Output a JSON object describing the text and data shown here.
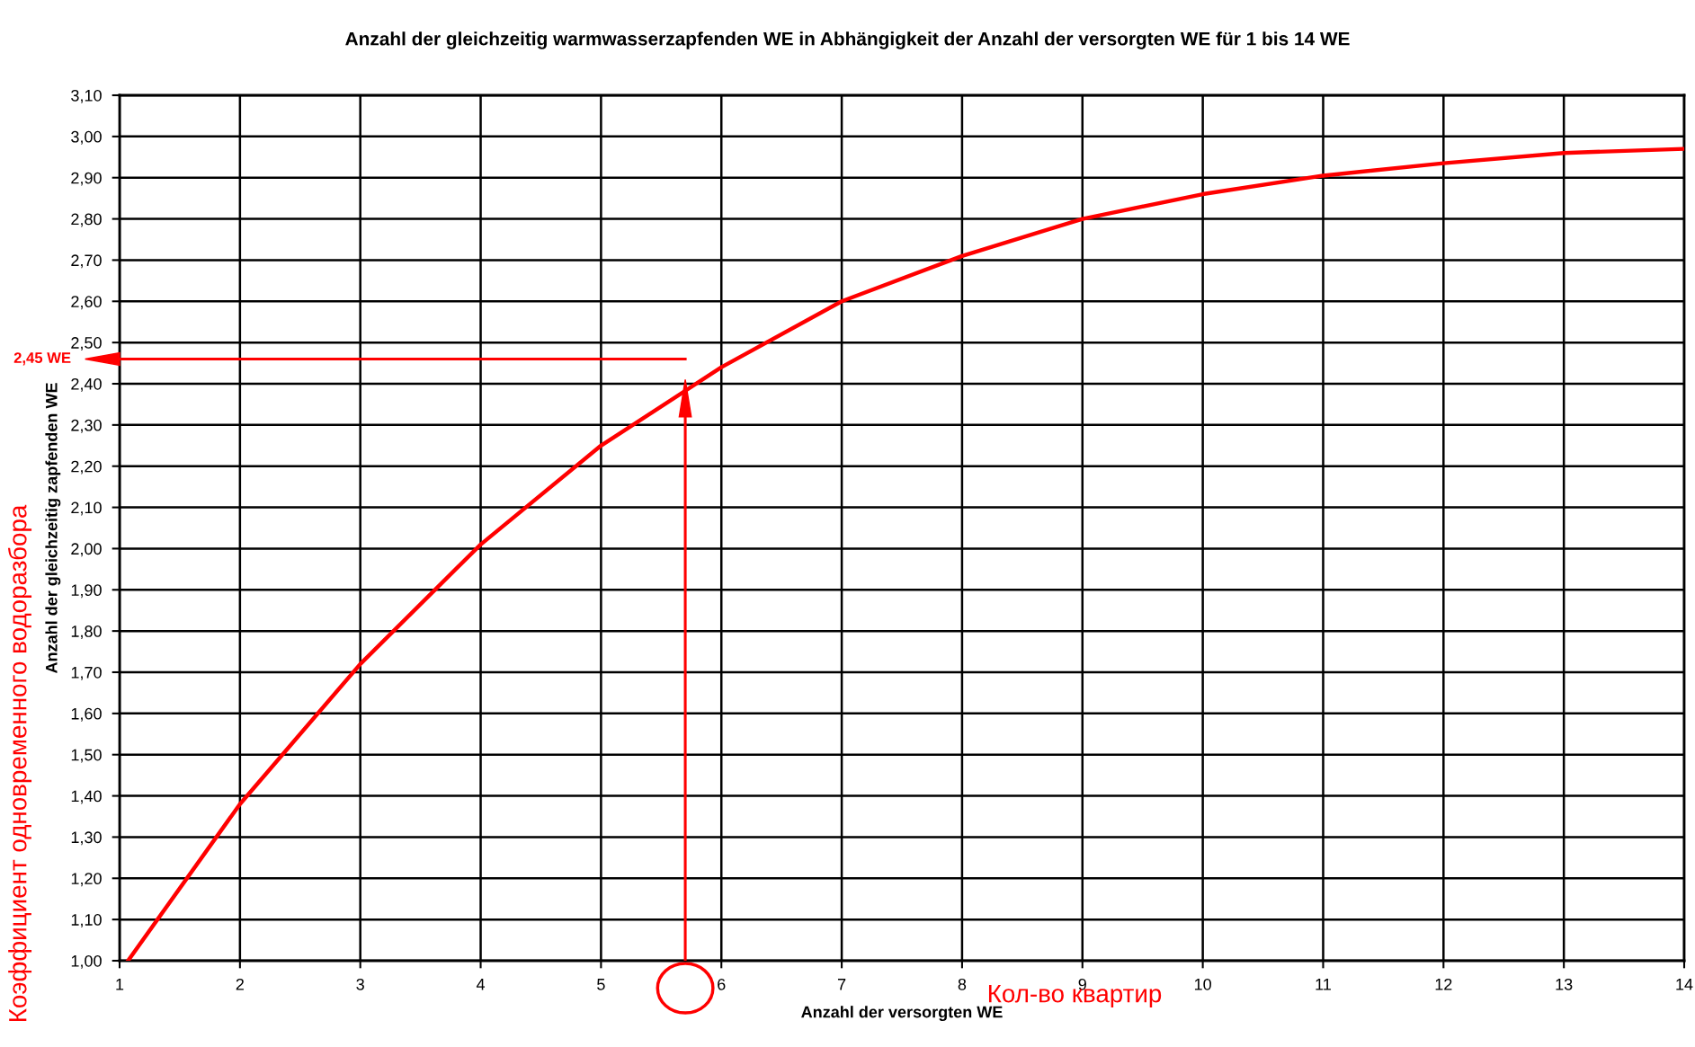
{
  "chart_data": {
    "type": "line",
    "title": "Anzahl der gleichzeitig warmwasserzapfenden WE in Abhängigkeit der Anzahl der versorgten WE für 1 bis 14 WE",
    "xlabel": "Anzahl der versorgten WE",
    "ylabel": "Anzahl der gleichzeitig zapfenden WE",
    "x": [
      1.07,
      2,
      3,
      4,
      5,
      6,
      7,
      8,
      9,
      10,
      11,
      12,
      13,
      14
    ],
    "series": [
      {
        "color": "#ff0000",
        "values": [
          1.0,
          1.38,
          1.72,
          2.01,
          2.25,
          2.44,
          2.6,
          2.71,
          2.8,
          2.86,
          2.905,
          2.935,
          2.96,
          2.97
        ]
      }
    ],
    "xlim": [
      1,
      14
    ],
    "xticks": [
      1,
      2,
      3,
      4,
      5,
      6,
      7,
      8,
      9,
      10,
      11,
      12,
      13,
      14
    ],
    "ylim": [
      1.0,
      3.1
    ],
    "yticks": [
      {
        "value": 1.0,
        "label": "1,00"
      },
      {
        "value": 1.1,
        "label": "1,10"
      },
      {
        "value": 1.2,
        "label": "1,20"
      },
      {
        "value": 1.3,
        "label": "1,30"
      },
      {
        "value": 1.4,
        "label": "1,40"
      },
      {
        "value": 1.5,
        "label": "1,50"
      },
      {
        "value": 1.6,
        "label": "1,60"
      },
      {
        "value": 1.7,
        "label": "1,70"
      },
      {
        "value": 1.8,
        "label": "1,80"
      },
      {
        "value": 1.9,
        "label": "1,90"
      },
      {
        "value": 2.0,
        "label": "2,00"
      },
      {
        "value": 2.1,
        "label": "2,10"
      },
      {
        "value": 2.2,
        "label": "2,20"
      },
      {
        "value": 2.3,
        "label": "2,30"
      },
      {
        "value": 2.4,
        "label": "2,40"
      },
      {
        "value": 2.5,
        "label": "2,50"
      },
      {
        "value": 2.6,
        "label": "2,60"
      },
      {
        "value": 2.7,
        "label": "2,70"
      },
      {
        "value": 2.8,
        "label": "2,80"
      },
      {
        "value": 2.9,
        "label": "2,90"
      },
      {
        "value": 3.0,
        "label": "3,00"
      },
      {
        "value": 3.1,
        "label": "3,10"
      }
    ],
    "grid": true,
    "marker": "none",
    "line_style": "solid",
    "ref_lines": [
      {
        "axis": "y",
        "value": 2.46,
        "label": "2,45 WE",
        "color": "#ff0000",
        "line_style": "solid"
      },
      {
        "axis": "x",
        "value": 5.7,
        "color": "#ff0000",
        "line_style": "solid"
      }
    ],
    "annotations": [
      "Коэффициент одновременного водоразбора",
      "Кол-во квартир"
    ]
  }
}
